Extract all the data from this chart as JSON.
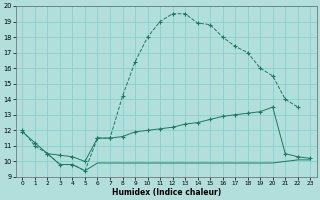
{
  "xlabel": "Humidex (Indice chaleur)",
  "line_color": "#1a7a60",
  "bg_color": "#b2dfdb",
  "grid_color": "#7ececa",
  "xlim": [
    -0.5,
    23.5
  ],
  "ylim": [
    9,
    20
  ],
  "yticks": [
    9,
    10,
    11,
    12,
    13,
    14,
    15,
    16,
    17,
    18,
    19,
    20
  ],
  "xticks": [
    0,
    1,
    2,
    3,
    4,
    5,
    6,
    7,
    8,
    9,
    10,
    11,
    12,
    13,
    14,
    15,
    16,
    17,
    18,
    19,
    20,
    21,
    22,
    23
  ],
  "curve1_x": [
    0,
    1,
    2,
    3,
    4,
    5,
    6,
    7,
    8,
    9,
    10,
    11,
    12,
    13,
    14,
    15,
    16,
    17,
    18,
    19,
    20,
    21,
    22
  ],
  "curve1_y": [
    12,
    11,
    10.5,
    9.8,
    9.8,
    9.4,
    11.5,
    11.5,
    14.2,
    16.4,
    18.0,
    19.0,
    19.5,
    19.5,
    18.9,
    18.8,
    18.0,
    17.4,
    17.0,
    16.0,
    15.5,
    14.0,
    13.5
  ],
  "curve2_x": [
    0,
    1,
    2,
    3,
    4,
    5,
    6,
    7,
    8,
    9,
    10,
    11,
    12,
    13,
    14,
    15,
    16,
    17,
    18,
    19,
    20,
    21,
    22,
    23
  ],
  "curve2_y": [
    11.9,
    11.2,
    10.5,
    10.4,
    10.3,
    10.0,
    11.5,
    11.5,
    11.6,
    11.9,
    12.0,
    12.1,
    12.2,
    12.4,
    12.5,
    12.7,
    12.9,
    13.0,
    13.1,
    13.2,
    13.5,
    10.5,
    10.3,
    10.2
  ],
  "curve3_x": [
    2,
    3,
    4,
    5,
    6,
    7,
    8,
    9,
    10,
    11,
    12,
    13,
    14,
    15,
    16,
    17,
    18,
    19,
    20,
    21,
    22,
    23
  ],
  "curve3_y": [
    10.5,
    9.8,
    9.8,
    9.4,
    9.9,
    9.9,
    9.9,
    9.9,
    9.9,
    9.9,
    9.9,
    9.9,
    9.9,
    9.9,
    9.9,
    9.9,
    9.9,
    9.9,
    9.9,
    10.0,
    10.1,
    10.1
  ]
}
